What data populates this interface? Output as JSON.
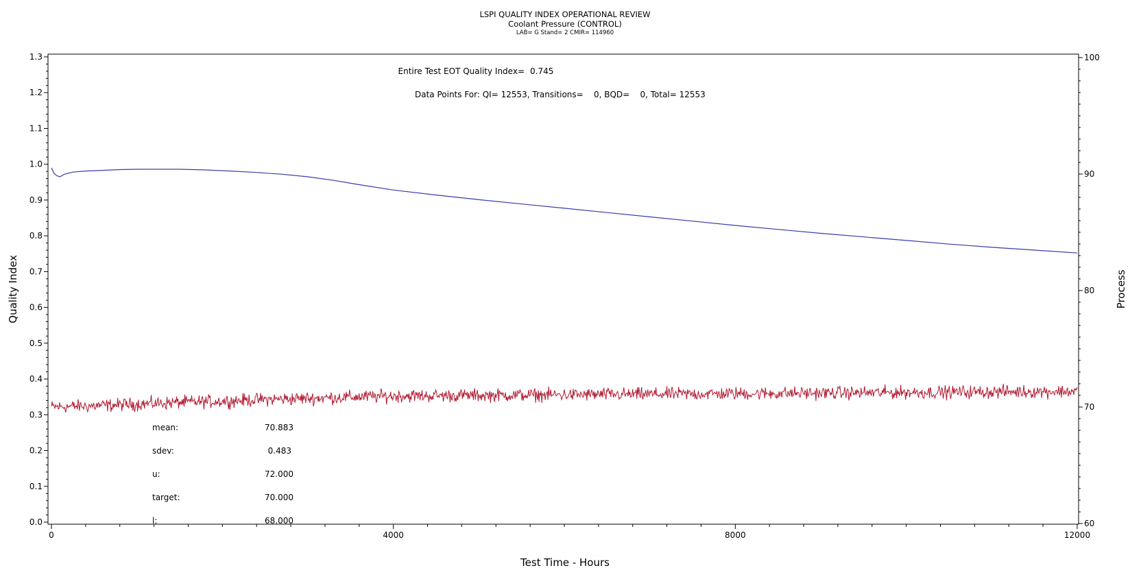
{
  "header": {
    "title": "LSPI QUALITY INDEX OPERATIONAL REVIEW",
    "subtitle": "Coolant Pressure (CONTROL)",
    "meta": "LAB= G Stand= 2 CMIR= 114960"
  },
  "annotations": {
    "eot_label": "Entire Test EOT Quality Index=",
    "eot_value": "0.745",
    "datapoints": "Data Points For: QI= 12553, Transitions=    0, BQD=    0, Total= 12553"
  },
  "stats": [
    {
      "label": "mean:",
      "value": "70.883"
    },
    {
      "label": "sdev:",
      "value": "0.483"
    },
    {
      "label": "u:",
      "value": "72.000"
    },
    {
      "label": "target:",
      "value": "70.000"
    },
    {
      "label": "l:",
      "value": "68.000"
    }
  ],
  "colors": {
    "quality_index": "#3a3aa8",
    "process": "#b01830"
  },
  "chart_data": {
    "type": "line",
    "xlabel": "Test Time - Hours",
    "ylabel": "Quality Index",
    "y2label": "Process",
    "xlim": [
      0,
      12000
    ],
    "ylim": [
      0,
      1.3
    ],
    "y2lim": [
      60,
      100
    ],
    "xticks": [
      "0",
      "4000",
      "8000",
      "12000"
    ],
    "yticks": [
      "0.0",
      "0.1",
      "0.2",
      "0.3",
      "0.4",
      "0.5",
      "0.6",
      "0.7",
      "0.8",
      "0.9",
      "1.0",
      "1.1",
      "1.2",
      "1.3"
    ],
    "y2ticks": [
      "60",
      "70",
      "80",
      "90",
      "100"
    ],
    "series": [
      {
        "axis": "left",
        "x": [
          0,
          30,
          60,
          100,
          150,
          250,
          400,
          600,
          800,
          1000,
          1200,
          1500,
          1800,
          2100,
          2400,
          2700,
          3000,
          3300,
          3600,
          4000,
          4500,
          5000,
          5500,
          6000,
          6500,
          7000,
          7500,
          8000,
          8500,
          9000,
          9500,
          10000,
          10500,
          11000,
          11500,
          12000
        ],
        "values": [
          0.99,
          0.975,
          0.968,
          0.965,
          0.972,
          0.978,
          0.981,
          0.983,
          0.985,
          0.986,
          0.986,
          0.986,
          0.984,
          0.981,
          0.977,
          0.972,
          0.965,
          0.955,
          0.943,
          0.928,
          0.914,
          0.901,
          0.889,
          0.877,
          0.865,
          0.853,
          0.841,
          0.829,
          0.818,
          0.807,
          0.797,
          0.787,
          0.777,
          0.768,
          0.76,
          0.752
        ]
      },
      {
        "axis": "right",
        "x": [
          0,
          500,
          1000,
          1500,
          2000,
          2500,
          3000,
          3500,
          4000,
          5000,
          6000,
          7000,
          8000,
          9000,
          10000,
          11000,
          12000
        ],
        "values": [
          70.0,
          70.1,
          70.25,
          70.4,
          70.5,
          70.65,
          70.75,
          70.85,
          70.95,
          71.0,
          71.05,
          71.1,
          71.15,
          71.2,
          71.25,
          71.3,
          71.35
        ]
      }
    ]
  }
}
